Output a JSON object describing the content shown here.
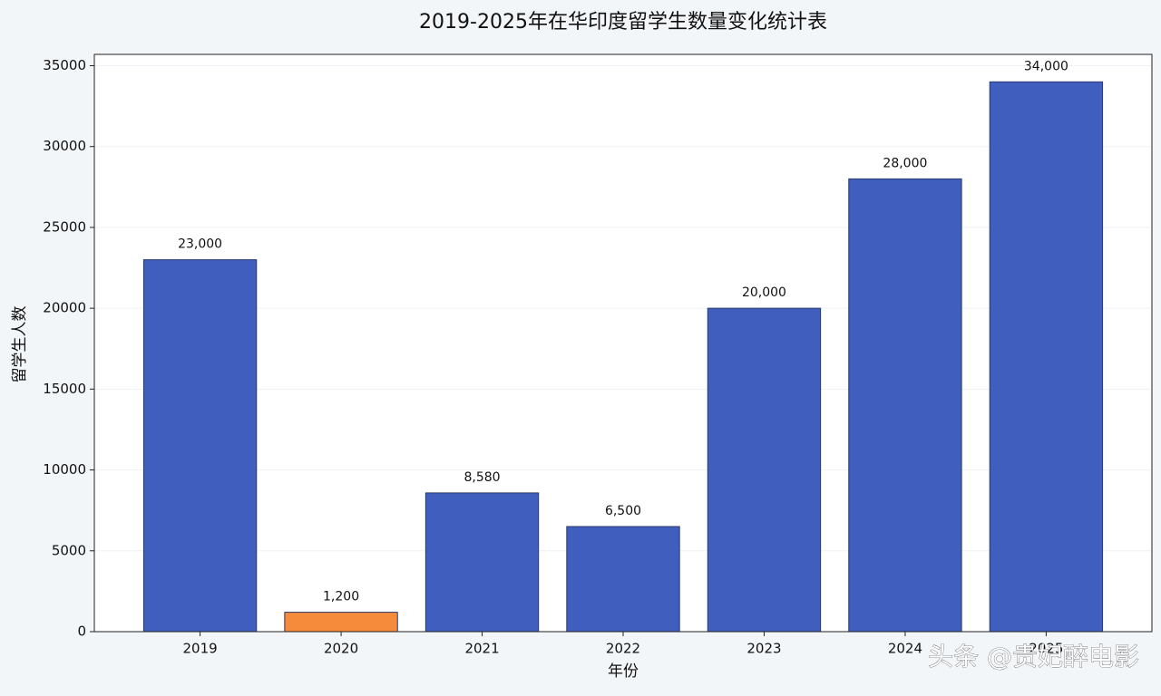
{
  "chart_data": {
    "type": "bar",
    "title": "2019-2025年在华印度留学生数量变化统计表",
    "x_label": "年份",
    "y_label": "留学生人数",
    "categories": [
      "2019",
      "2020",
      "2021",
      "2022",
      "2023",
      "2024",
      "2025"
    ],
    "values": [
      23000,
      1200,
      8580,
      6500,
      20000,
      28000,
      34000
    ],
    "value_labels": [
      "23,000",
      "1,200",
      "8,580",
      "6,500",
      "20,000",
      "28,000",
      "34,000"
    ],
    "colors": [
      "#3f5ebd",
      "#f68b3c",
      "#3f5ebd",
      "#3f5ebd",
      "#3f5ebd",
      "#3f5ebd",
      "#3f5ebd"
    ],
    "ylim": [
      0,
      35700
    ],
    "yticks": [
      0,
      5000,
      10000,
      15000,
      20000,
      25000,
      30000,
      35000
    ],
    "grid": true,
    "watermark": "头条 @贵妃醉电影"
  }
}
